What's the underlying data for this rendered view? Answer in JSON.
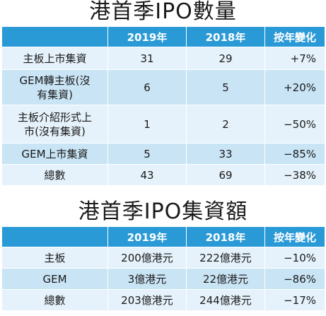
{
  "chart_data": [
    {
      "type": "table",
      "title": "港首季IPO數量",
      "columns": [
        "",
        "2019年",
        "2018年",
        "按年變化"
      ],
      "rows": [
        {
          "label_lines": [
            "主板上市集資"
          ],
          "y2019": "31",
          "y2018": "29",
          "change": "+7%"
        },
        {
          "label_lines": [
            "GEM轉主板(沒",
            "有集資)"
          ],
          "y2019": "6",
          "y2018": "5",
          "change": "+20%"
        },
        {
          "label_lines": [
            "主板介紹形式上",
            "市(沒有集資)"
          ],
          "y2019": "1",
          "y2018": "2",
          "change": "−50%"
        },
        {
          "label_lines": [
            "GEM上市集資"
          ],
          "y2019": "5",
          "y2018": "33",
          "change": "−85%"
        },
        {
          "label_lines": [
            "總數"
          ],
          "y2019": "43",
          "y2018": "69",
          "change": "−38%"
        }
      ]
    },
    {
      "type": "table",
      "title": "港首季IPO集資額",
      "columns": [
        "",
        "2019年",
        "2018年",
        "按年變化"
      ],
      "rows": [
        {
          "label_lines": [
            "主板"
          ],
          "y2019": "200億港元",
          "y2018": "222億港元",
          "change": "−10%"
        },
        {
          "label_lines": [
            "GEM"
          ],
          "y2019": "3億港元",
          "y2018": "22億港元",
          "change": "−86%"
        },
        {
          "label_lines": [
            "總數"
          ],
          "y2019": "203億港元",
          "y2018": "244億港元",
          "change": "−17%"
        }
      ]
    }
  ],
  "colors": {
    "header_bg": "#2a9ad7",
    "row_light": "#e5f2fb",
    "row_dark": "#c9e4f5"
  }
}
